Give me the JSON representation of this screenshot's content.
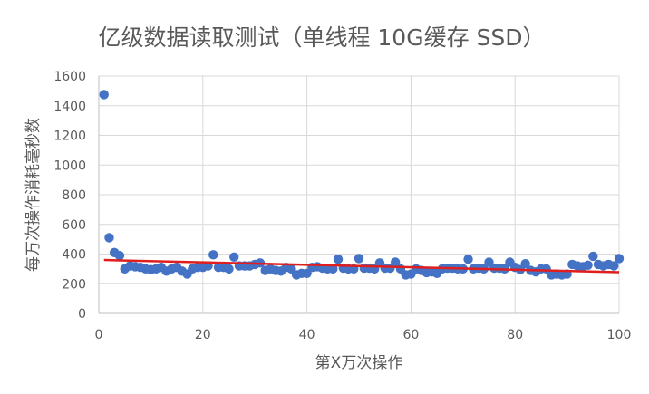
{
  "chart_data": {
    "type": "scatter",
    "title": "亿级数据读取测试（单线程 10G缓存 SSD）",
    "xlabel": "第X万次操作",
    "ylabel": "每万次操作消耗毫秒数",
    "xlim": [
      0,
      100
    ],
    "ylim": [
      0,
      1600
    ],
    "x_ticks": [
      0,
      20,
      40,
      60,
      80,
      100
    ],
    "y_ticks": [
      0,
      200,
      400,
      600,
      800,
      1000,
      1200,
      1400,
      1600
    ],
    "grid": true,
    "legend": "none",
    "marker_color": "#4472C4",
    "trendline": {
      "type": "linear",
      "color": "#E01E1E",
      "x": [
        1,
        100
      ],
      "y": [
        360,
        278
      ]
    },
    "series": [
      {
        "x": [
          1,
          2,
          3,
          4,
          5,
          6,
          7,
          8,
          9,
          10,
          11,
          12,
          13,
          14,
          15,
          16,
          17,
          18,
          19,
          20,
          21,
          22,
          23,
          24,
          25,
          26,
          27,
          28,
          29,
          30,
          31,
          32,
          33,
          34,
          35,
          36,
          37,
          38,
          39,
          40,
          41,
          42,
          43,
          44,
          45,
          46,
          47,
          48,
          49,
          50,
          51,
          52,
          53,
          54,
          55,
          56,
          57,
          58,
          59,
          60,
          61,
          62,
          63,
          64,
          65,
          66,
          67,
          68,
          69,
          70,
          71,
          72,
          73,
          74,
          75,
          76,
          77,
          78,
          79,
          80,
          81,
          82,
          83,
          84,
          85,
          86,
          87,
          88,
          89,
          90,
          91,
          92,
          93,
          94,
          95,
          96,
          97,
          98,
          99,
          100
        ],
        "y": [
          1475,
          510,
          410,
          390,
          300,
          320,
          315,
          310,
          300,
          295,
          300,
          310,
          285,
          300,
          310,
          285,
          265,
          300,
          310,
          310,
          320,
          395,
          310,
          310,
          300,
          380,
          320,
          320,
          320,
          330,
          340,
          290,
          300,
          290,
          285,
          310,
          300,
          260,
          270,
          270,
          310,
          315,
          305,
          300,
          300,
          365,
          305,
          300,
          300,
          370,
          305,
          305,
          300,
          340,
          305,
          305,
          345,
          300,
          260,
          265,
          300,
          290,
          275,
          280,
          270,
          300,
          305,
          305,
          300,
          300,
          365,
          300,
          305,
          300,
          345,
          305,
          305,
          300,
          345,
          310,
          295,
          335,
          290,
          280,
          300,
          300,
          260,
          265,
          260,
          265,
          330,
          320,
          315,
          325,
          385,
          330,
          320,
          330,
          320,
          370
        ]
      }
    ]
  }
}
